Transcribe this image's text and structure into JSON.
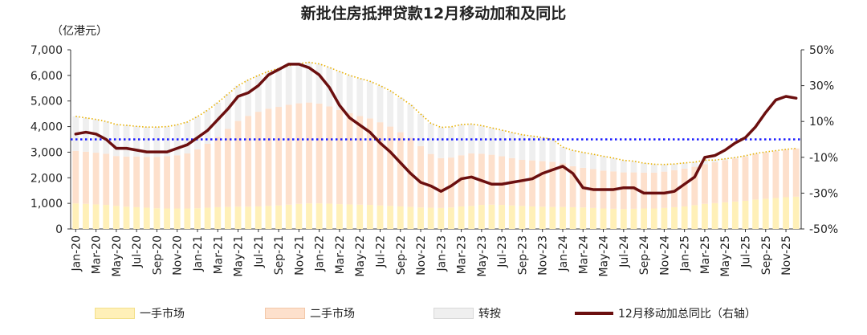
{
  "chart_data": {
    "type": "bar+line",
    "title": "新批住房抵押贷款12月移动加和及同比",
    "ylabel_left": "（亿港元）",
    "ylim_left": [
      0,
      7000
    ],
    "yticks_left": [
      "0",
      "1,000",
      "2,000",
      "3,000",
      "4,000",
      "5,000",
      "6,000",
      "7,000"
    ],
    "ylim_right": [
      -50,
      50
    ],
    "yticks_right": [
      "-50%",
      "-30%",
      "-10%",
      "10%",
      "30%",
      "50%"
    ],
    "reference_line_right": 0,
    "x_tick_labels": [
      "Jan-20",
      "Mar-20",
      "May-20",
      "Jul-20",
      "Sep-20",
      "Nov-20",
      "Jan-21",
      "Mar-21",
      "May-21",
      "Jul-21",
      "Sep-21",
      "Nov-21",
      "Jan-22",
      "Mar-22",
      "May-22",
      "Jul-22",
      "Sep-22",
      "Nov-22",
      "Jan-23",
      "Mar-23",
      "May-23",
      "Jul-23",
      "Sep-23",
      "Nov-23",
      "Jan-24",
      "Mar-24",
      "May-24",
      "Jul-24",
      "Sep-24",
      "Nov-24",
      "Jan-25",
      "Mar-25",
      "May-25",
      "Jul-25",
      "Sep-25",
      "Nov-25"
    ],
    "x_tick_every": 2,
    "months": [
      "Jan-20",
      "Feb-20",
      "Mar-20",
      "Apr-20",
      "May-20",
      "Jun-20",
      "Jul-20",
      "Aug-20",
      "Sep-20",
      "Oct-20",
      "Nov-20",
      "Dec-20",
      "Jan-21",
      "Feb-21",
      "Mar-21",
      "Apr-21",
      "May-21",
      "Jun-21",
      "Jul-21",
      "Aug-21",
      "Sep-21",
      "Oct-21",
      "Nov-21",
      "Dec-21",
      "Jan-22",
      "Feb-22",
      "Mar-22",
      "Apr-22",
      "May-22",
      "Jun-22",
      "Jul-22",
      "Aug-22",
      "Sep-22",
      "Oct-22",
      "Nov-22",
      "Dec-22",
      "Jan-23",
      "Feb-23",
      "Mar-23",
      "Apr-23",
      "May-23",
      "Jun-23",
      "Jul-23",
      "Aug-23",
      "Sep-23",
      "Oct-23",
      "Nov-23",
      "Dec-23",
      "Jan-24",
      "Feb-24",
      "Mar-24",
      "Apr-24",
      "May-24",
      "Jun-24",
      "Jul-24",
      "Aug-24",
      "Sep-24",
      "Oct-24",
      "Nov-24",
      "Dec-24",
      "Jan-25",
      "Feb-25",
      "Mar-25",
      "Apr-25",
      "May-25",
      "Jun-25",
      "Jul-25",
      "Aug-25",
      "Sep-25",
      "Oct-25",
      "Nov-25",
      "Dec-25"
    ],
    "series": [
      {
        "name": "一手市场",
        "type": "stacked-bar",
        "color": "#fff0b8",
        "values": [
          1000,
          980,
          960,
          940,
          900,
          870,
          850,
          830,
          810,
          800,
          800,
          800,
          810,
          830,
          850,
          860,
          870,
          870,
          880,
          900,
          920,
          950,
          980,
          1000,
          1000,
          990,
          970,
          960,
          950,
          940,
          920,
          900,
          880,
          860,
          840,
          830,
          820,
          840,
          880,
          900,
          940,
          950,
          940,
          920,
          900,
          880,
          870,
          860,
          860,
          850,
          840,
          820,
          800,
          790,
          780,
          790,
          800,
          800,
          820,
          850,
          880,
          930,
          980,
          1010,
          1040,
          1070,
          1100,
          1150,
          1180,
          1210,
          1240,
          1260
        ]
      },
      {
        "name": "二手市场",
        "type": "stacked-bar",
        "color": "#fde0cc",
        "values": [
          2050,
          2040,
          2020,
          2000,
          1950,
          1960,
          1980,
          1990,
          2010,
          2040,
          2080,
          2150,
          2300,
          2500,
          2750,
          3050,
          3350,
          3550,
          3700,
          3800,
          3850,
          3900,
          3930,
          3940,
          3900,
          3800,
          3680,
          3560,
          3460,
          3380,
          3250,
          3100,
          2900,
          2700,
          2400,
          2100,
          1950,
          1950,
          2000,
          2050,
          2000,
          1950,
          1900,
          1850,
          1800,
          1800,
          1780,
          1760,
          1700,
          1600,
          1550,
          1520,
          1480,
          1460,
          1430,
          1420,
          1400,
          1400,
          1420,
          1450,
          1480,
          1500,
          1550,
          1600,
          1650,
          1680,
          1720,
          1770,
          1800,
          1820,
          1850,
          1880
        ]
      },
      {
        "name": "转按",
        "type": "stacked-bar",
        "color": "#efefef",
        "values": [
          1350,
          1320,
          1300,
          1260,
          1230,
          1220,
          1180,
          1160,
          1160,
          1160,
          1190,
          1230,
          1280,
          1310,
          1340,
          1360,
          1380,
          1400,
          1420,
          1460,
          1500,
          1530,
          1550,
          1570,
          1550,
          1520,
          1500,
          1480,
          1470,
          1450,
          1430,
          1400,
          1350,
          1300,
          1250,
          1200,
          1200,
          1200,
          1200,
          1150,
          1100,
          1050,
          1020,
          1000,
          980,
          950,
          920,
          880,
          640,
          620,
          600,
          580,
          560,
          520,
          470,
          440,
          370,
          330,
          280,
          240,
          220,
          180,
          160,
          80,
          50,
          40,
          40,
          30,
          30,
          30,
          20,
          10
        ]
      },
      {
        "name": "12月移动加总同比（右轴）",
        "type": "line",
        "axis": "right",
        "color": "#6b0f0f",
        "values": [
          3,
          4,
          3,
          0,
          -5,
          -5,
          -6,
          -7,
          -7,
          -7,
          -5,
          -3,
          1,
          5,
          11,
          17,
          24,
          26,
          30,
          36,
          39,
          42,
          42,
          40,
          36,
          29,
          19,
          12,
          8,
          4,
          -2,
          -7,
          -13,
          -19,
          -24,
          -26,
          -29,
          -26,
          -22,
          -21,
          -23,
          -25,
          -25,
          -24,
          -23,
          -22,
          -19,
          -17,
          -15,
          -19,
          -27,
          -28,
          -28,
          -28,
          -27,
          -27,
          -30,
          -30,
          -30,
          -29,
          -25,
          -21,
          -10,
          -9,
          -6,
          -2,
          1,
          7,
          15,
          22,
          24,
          23
        ]
      }
    ]
  },
  "legend": {
    "item1": "一手市场",
    "item2": "二手市场",
    "item3": "转按",
    "item4": "12月移动加总同比（右轴）"
  },
  "colors": {
    "first": "#fff0b8",
    "second": "#fde0cc",
    "refi": "#efefef",
    "line": "#6b0f0f",
    "ref_line": "#1a1aff",
    "top_dots": "#e8b000"
  }
}
